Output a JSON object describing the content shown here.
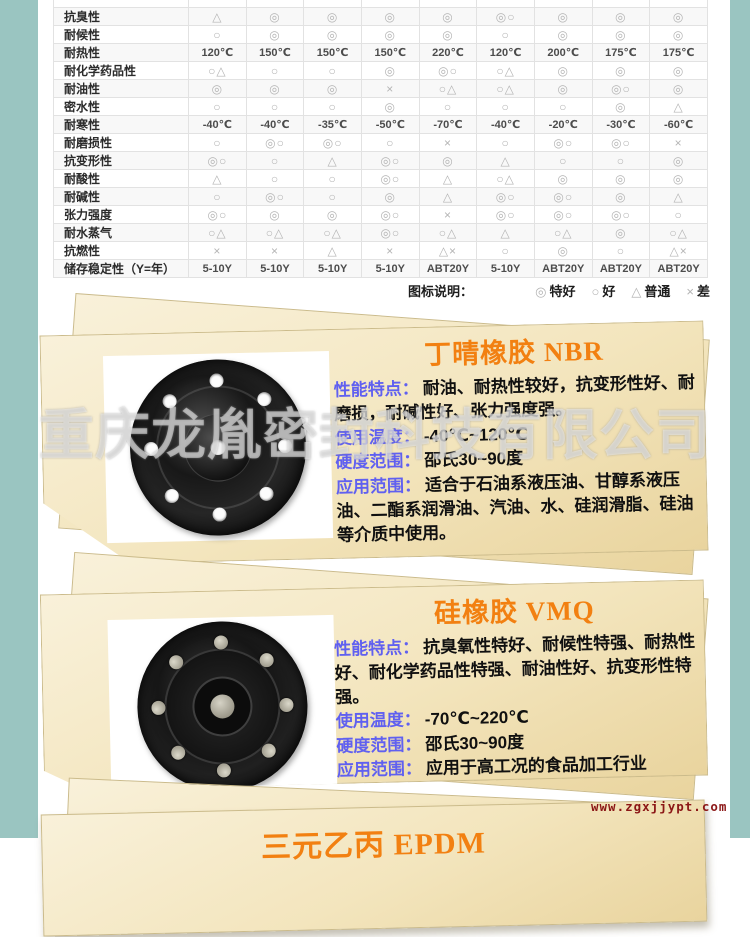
{
  "page": {
    "side_band_color": "#9ac5c1",
    "background_color": "#ffffff"
  },
  "properties_table": {
    "rows": [
      {
        "label": "抗臭性",
        "values": [
          "△",
          "◎",
          "◎",
          "◎",
          "◎",
          "◎○",
          "◎",
          "◎",
          "◎"
        ]
      },
      {
        "label": "耐候性",
        "values": [
          "○",
          "◎",
          "◎",
          "◎",
          "◎",
          "○",
          "◎",
          "◎",
          "◎"
        ]
      },
      {
        "label": "耐热性",
        "values": [
          "120℃",
          "150℃",
          "150℃",
          "150℃",
          "220℃",
          "120℃",
          "200℃",
          "175℃",
          "175℃"
        ]
      },
      {
        "label": "耐化学药品性",
        "values": [
          "○△",
          "○",
          "○",
          "◎",
          "◎○",
          "○△",
          "◎",
          "◎",
          "◎"
        ]
      },
      {
        "label": "耐油性",
        "values": [
          "◎",
          "◎",
          "◎",
          "×",
          "○△",
          "○△",
          "◎",
          "◎○",
          "◎"
        ]
      },
      {
        "label": "密水性",
        "values": [
          "○",
          "○",
          "○",
          "◎",
          "○",
          "○",
          "○",
          "◎",
          "△"
        ]
      },
      {
        "label": "耐寒性",
        "values": [
          "-40℃",
          "-40℃",
          "-35℃",
          "-50℃",
          "-70℃",
          "-40℃",
          "-20℃",
          "-30℃",
          "-60℃"
        ]
      },
      {
        "label": "耐磨损性",
        "values": [
          "○",
          "◎○",
          "◎○",
          "○",
          "×",
          "○",
          "◎○",
          "◎○",
          "×"
        ]
      },
      {
        "label": "抗变形性",
        "values": [
          "◎○",
          "○",
          "△",
          "◎○",
          "◎",
          "△",
          "○",
          "○",
          "◎"
        ]
      },
      {
        "label": "耐酸性",
        "values": [
          "△",
          "○",
          "○",
          "◎○",
          "△",
          "○△",
          "◎",
          "◎",
          "◎"
        ]
      },
      {
        "label": "耐碱性",
        "values": [
          "○",
          "◎○",
          "○",
          "◎",
          "△",
          "◎○",
          "◎○",
          "◎",
          "△"
        ]
      },
      {
        "label": "张力强度",
        "values": [
          "◎○",
          "◎",
          "◎",
          "◎○",
          "×",
          "◎○",
          "◎○",
          "◎○",
          "○"
        ]
      },
      {
        "label": "耐水蒸气",
        "values": [
          "○△",
          "○△",
          "○△",
          "◎○",
          "○△",
          "△",
          "○△",
          "◎",
          "○△"
        ]
      },
      {
        "label": "抗燃性",
        "values": [
          "×",
          "×",
          "△",
          "×",
          "△×",
          "○",
          "◎",
          "○",
          "△×"
        ]
      },
      {
        "label": "储存稳定性（Y=年）",
        "values": [
          "5-10Y",
          "5-10Y",
          "5-10Y",
          "5-10Y",
          "ABT20Y",
          "5-10Y",
          "ABT20Y",
          "ABT20Y",
          "ABT20Y"
        ]
      }
    ]
  },
  "legend": {
    "title": "图标说明：",
    "items": [
      {
        "symbol": "◎",
        "label": "特好"
      },
      {
        "symbol": "○",
        "label": "好"
      },
      {
        "symbol": "△",
        "label": "普通"
      },
      {
        "symbol": "×",
        "label": "差"
      }
    ]
  },
  "sections": [
    {
      "title": "丁晴橡胶 NBR",
      "image": "black-rubber-diaphragm-photo",
      "fields": [
        {
          "label": "性能特点：",
          "value": "耐油、耐热性较好，抗变形性好、耐磨损，耐碱性好、张力强度强。"
        },
        {
          "label": "使用温度：",
          "value": "-40℃~120℃"
        },
        {
          "label": "硬度范围：",
          "value": "邵氏30~90度"
        },
        {
          "label": "应用范围：",
          "value": "适合于石油系液压油、甘醇系液压油、二酯系润滑油、汽油、水、硅润滑脂、硅油等介质中使用。"
        }
      ]
    },
    {
      "title": "硅橡胶 VMQ",
      "image": "black-diaphragm-with-metal-rivets-photo",
      "fields": [
        {
          "label": "性能特点：",
          "value": "抗臭氧性特好、耐候性特强、耐热性好、耐化学药品性特强、耐油性好、抗变形性特强。"
        },
        {
          "label": "使用温度：",
          "value": "-70℃~220℃"
        },
        {
          "label": "硬度范围：",
          "value": "邵氏30~90度"
        },
        {
          "label": "应用范围：",
          "value": "应用于高工况的食品加工行业"
        }
      ]
    },
    {
      "title": "三元乙丙 EPDM",
      "fields": []
    }
  ],
  "watermarks": {
    "company": "重庆龙胤密封科技有限公司",
    "website": "www.zgxjjypt.com"
  },
  "colors": {
    "section_title": "#f28011",
    "field_label": "#6060f0",
    "body_text": "#101010",
    "paper": "#f3e5bd",
    "symbol_gray": "#b4b4b4",
    "watermark_red": "#8b1616"
  }
}
